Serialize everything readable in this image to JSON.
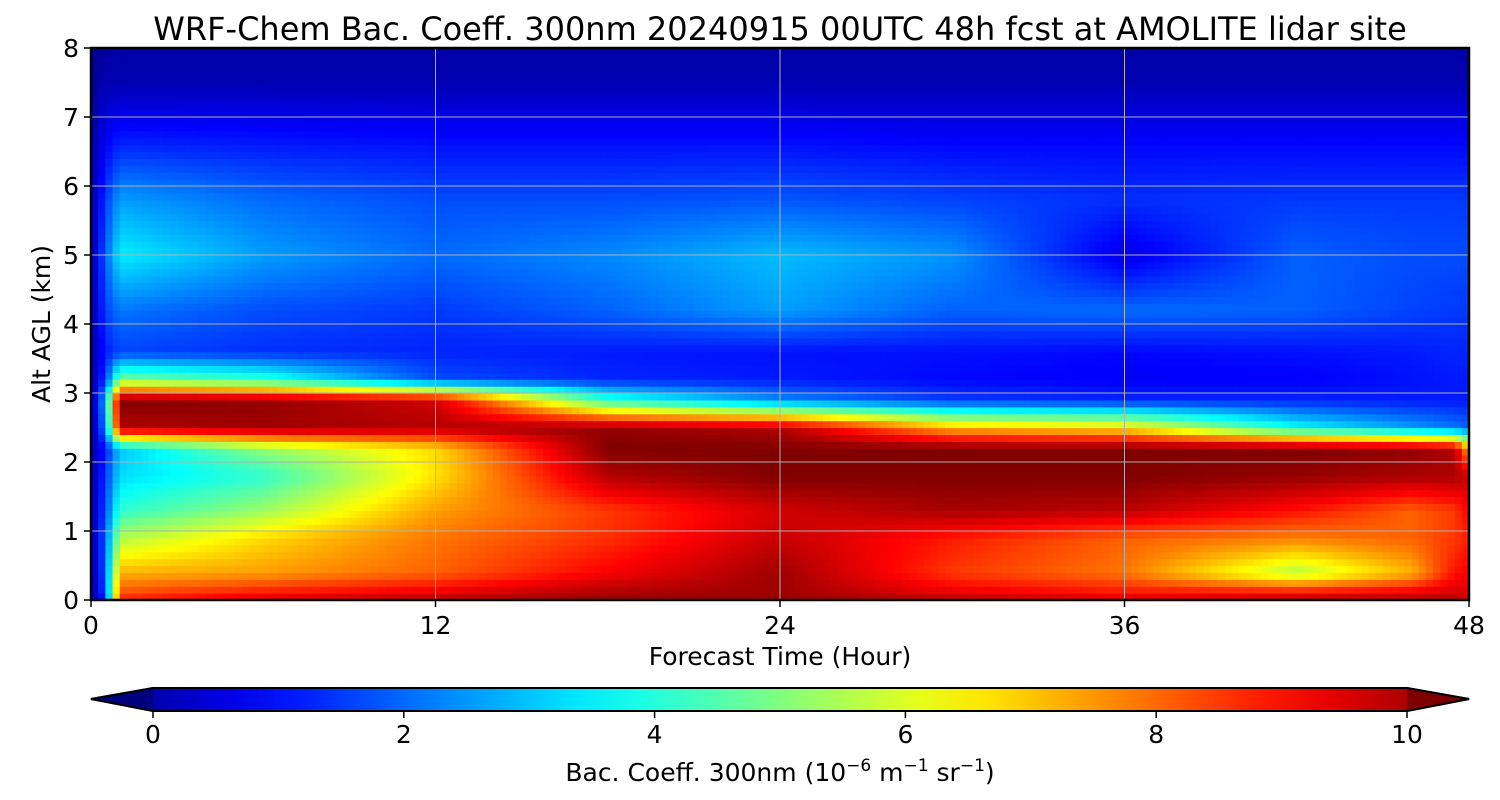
{
  "chart_data": {
    "type": "heatmap",
    "title": "WRF-Chem Bac. Coeff. 300nm  20240915 00UTC 48h fcst at AMOLITE lidar site",
    "xlabel": "Forecast Time (Hour)",
    "ylabel": "Alt AGL (km)",
    "xlim": [
      0,
      48
    ],
    "ylim": [
      0,
      8
    ],
    "x_ticks": [
      0,
      12,
      24,
      36,
      48
    ],
    "y_ticks": [
      0,
      1,
      2,
      3,
      4,
      5,
      6,
      7,
      8
    ],
    "grid": true,
    "colormap": "jet",
    "colorbar": {
      "label_main": "Bac. Coeff. 300nm  (10",
      "label_exp1": "−6",
      "label_mid": " m",
      "label_exp2": "−1",
      "label_mid2": " sr",
      "label_exp3": "−1",
      "label_end": ")",
      "range": [
        0,
        10
      ],
      "ticks": [
        0,
        2,
        4,
        6,
        8,
        10
      ],
      "extend": "both",
      "placement": "bottom"
    },
    "z_grid": {
      "x": [
        0,
        0.5,
        1,
        6,
        12,
        18,
        24,
        30,
        36,
        42,
        46,
        47.5,
        48
      ],
      "y": [
        0,
        0.1,
        0.4,
        0.9,
        1.3,
        1.8,
        2.2,
        2.5,
        2.9,
        3.2,
        3.6,
        4.2,
        5.0,
        5.8,
        6.6,
        7.5,
        8.0
      ],
      "z": [
        [
          0.2,
          1.5,
          8.5,
          9.2,
          9.5,
          9.8,
          9.8,
          9.5,
          9.2,
          9.4,
          9.5,
          9.5,
          9.2
        ],
        [
          0.2,
          2.0,
          8.0,
          8.6,
          9.0,
          9.6,
          9.7,
          9.0,
          8.6,
          8.8,
          9.0,
          9.2,
          9.0
        ],
        [
          0.2,
          2.2,
          7.0,
          7.2,
          7.8,
          8.8,
          9.7,
          8.2,
          7.6,
          5.5,
          7.0,
          8.6,
          8.8
        ],
        [
          0.3,
          2.2,
          5.5,
          6.6,
          7.6,
          8.3,
          9.3,
          8.5,
          7.8,
          7.5,
          7.8,
          8.2,
          8.5
        ],
        [
          0.3,
          2.0,
          4.2,
          5.3,
          7.2,
          8.2,
          9.2,
          9.6,
          9.4,
          8.6,
          7.8,
          8.2,
          8.8
        ],
        [
          0.3,
          1.8,
          3.4,
          4.2,
          6.5,
          9.5,
          10.0,
          10.0,
          10.0,
          9.8,
          9.6,
          9.6,
          9.2
        ],
        [
          0.3,
          1.5,
          3.2,
          5.2,
          6.6,
          10.0,
          10.0,
          10.0,
          10.0,
          10.0,
          9.8,
          9.5,
          7.0
        ],
        [
          0.3,
          2.5,
          9.5,
          9.7,
          9.5,
          9.8,
          9.5,
          7.0,
          6.5,
          3.8,
          2.8,
          2.4,
          2.2
        ],
        [
          0.3,
          3.0,
          10.0,
          9.8,
          9.2,
          4.2,
          2.6,
          1.8,
          1.6,
          1.6,
          1.5,
          1.5,
          1.5
        ],
        [
          0.3,
          1.8,
          5.0,
          4.2,
          2.0,
          1.6,
          1.5,
          1.3,
          1.2,
          1.2,
          1.4,
          1.5,
          1.5
        ],
        [
          0.3,
          1.5,
          1.9,
          1.7,
          1.6,
          1.5,
          1.4,
          1.4,
          1.3,
          1.4,
          1.5,
          1.6,
          1.6
        ],
        [
          0.3,
          1.9,
          2.4,
          2.0,
          1.8,
          2.2,
          2.8,
          2.2,
          2.3,
          2.2,
          1.9,
          1.8,
          1.8
        ],
        [
          0.3,
          2.2,
          3.6,
          2.8,
          2.3,
          2.6,
          3.1,
          2.7,
          1.0,
          2.2,
          2.0,
          2.0,
          2.0
        ],
        [
          0.3,
          1.8,
          2.8,
          2.3,
          2.0,
          2.0,
          2.1,
          1.9,
          1.7,
          1.8,
          1.8,
          1.8,
          1.8
        ],
        [
          0.3,
          1.2,
          1.6,
          1.5,
          1.4,
          1.4,
          1.4,
          1.3,
          1.3,
          1.3,
          1.3,
          1.3,
          1.3
        ],
        [
          0.2,
          0.5,
          0.5,
          0.5,
          0.5,
          0.5,
          0.5,
          0.5,
          0.5,
          0.5,
          0.5,
          0.5,
          0.5
        ],
        [
          0.2,
          0.3,
          0.4,
          0.4,
          0.4,
          0.4,
          0.4,
          0.4,
          0.4,
          0.4,
          0.4,
          0.4,
          0.4
        ]
      ]
    }
  }
}
